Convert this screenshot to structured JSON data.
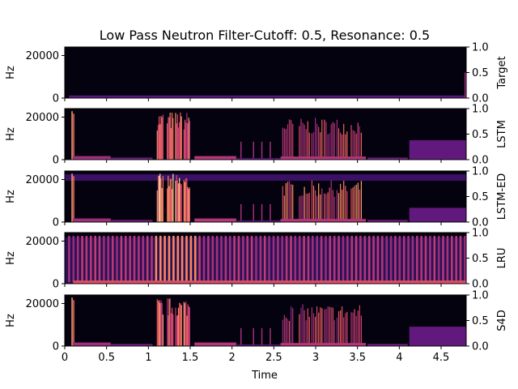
{
  "chart_data": {
    "type": "heatmap",
    "title": "Low Pass Neutron Filter-Cutoff: 0.5, Resonance: 0.5",
    "xlabel": "Time",
    "xlim": [
      0,
      4.8
    ],
    "x_ticks": [
      "0",
      "0.5",
      "1",
      "1.5",
      "2",
      "2.5",
      "3",
      "3.5",
      "4",
      "4.5"
    ],
    "x_tick_values": [
      0,
      0.5,
      1,
      1.5,
      2,
      2.5,
      3,
      3.5,
      4,
      4.5
    ],
    "ylabel": "Hz",
    "ylim": [
      0,
      24000
    ],
    "y_ticks": [
      "0",
      "20000"
    ],
    "right_ticks": [
      "0.0",
      "0.5",
      "1.0"
    ],
    "colormap": "magma",
    "panels": [
      {
        "label": "Target",
        "pattern": "target"
      },
      {
        "label": "LSTM",
        "pattern": "lstm"
      },
      {
        "label": "LSTM-ED",
        "pattern": "lstmed"
      },
      {
        "label": "LRU",
        "pattern": "lru"
      },
      {
        "label": "S4D",
        "pattern": "s4d"
      }
    ]
  }
}
